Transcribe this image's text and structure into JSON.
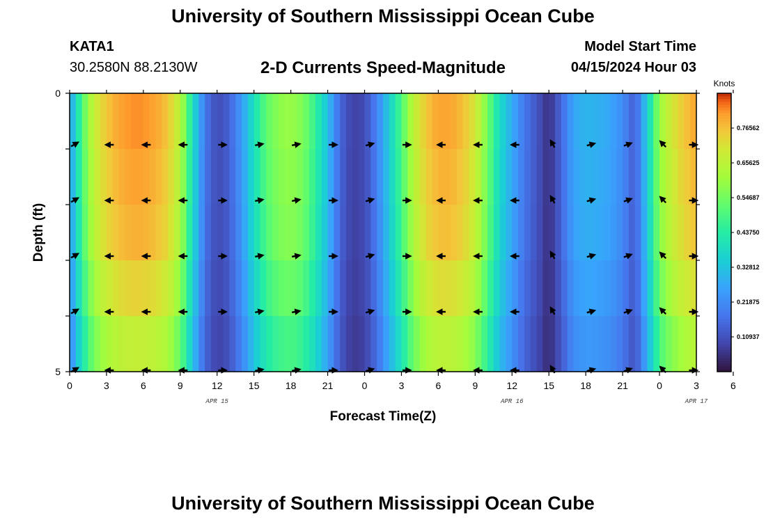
{
  "header": {
    "title": "University of Southern Mississippi Ocean Cube",
    "station_id": "KATA1",
    "coordinates": "30.2580N  88.2130W",
    "subtitle": "2-D Currents Speed-Magnitude",
    "model_start_label": "Model Start Time",
    "model_start_value": "04/15/2024 Hour 03"
  },
  "footer": {
    "title": "University of Southern Mississippi Ocean Cube"
  },
  "chart_data": {
    "type": "heatmap",
    "title": "2-D Currents Speed-Magnitude",
    "xlabel": "Forecast Time(Z)",
    "ylabel": "Depth (ft)",
    "xlim": [
      0,
      51
    ],
    "ylim": [
      0,
      5
    ],
    "y_tick_labels": [
      "0",
      "",
      "",
      "",
      "",
      "5"
    ],
    "x_tick_labels": [
      "0",
      "3",
      "6",
      "9",
      "12",
      "15",
      "18",
      "21",
      "0",
      "3",
      "6",
      "9",
      "12",
      "15",
      "18",
      "21",
      "0",
      "3",
      "6"
    ],
    "date_labels": [
      {
        "text": "APR 15",
        "hour": 12
      },
      {
        "text": "APR 16",
        "hour": 36
      },
      {
        "text": "APR 17",
        "hour": 51
      }
    ],
    "colorbar": {
      "unit": "Knots",
      "min": 0.0,
      "max": 0.875,
      "tick_values": [
        0.10937,
        0.21875,
        0.32812,
        0.4375,
        0.54687,
        0.65625,
        0.76562
      ],
      "tick_labels": [
        "0.10937",
        "0.21875",
        "0.32812",
        "0.43750",
        "0.54687",
        "0.65625",
        "0.76562"
      ]
    },
    "depth_levels": [
      0.5,
      1.5,
      2.5,
      3.5,
      4.5
    ],
    "speed_profile": {
      "hours": [
        0,
        1,
        2,
        3,
        4,
        5,
        6,
        7,
        8,
        9,
        10,
        11,
        12,
        13,
        14,
        15,
        16,
        17,
        18,
        19,
        20,
        21,
        22,
        23,
        24,
        25,
        26,
        27,
        28,
        29,
        30,
        31,
        32,
        33,
        34,
        35,
        36,
        37,
        38,
        39,
        40,
        41,
        42,
        43,
        44,
        45,
        46,
        47,
        48,
        49,
        50,
        51
      ],
      "speed": [
        0.25,
        0.5,
        0.68,
        0.76,
        0.8,
        0.82,
        0.82,
        0.8,
        0.76,
        0.65,
        0.4,
        0.18,
        0.1,
        0.14,
        0.25,
        0.4,
        0.52,
        0.58,
        0.6,
        0.56,
        0.46,
        0.32,
        0.15,
        0.08,
        0.1,
        0.2,
        0.35,
        0.5,
        0.66,
        0.76,
        0.8,
        0.8,
        0.77,
        0.7,
        0.55,
        0.38,
        0.28,
        0.18,
        0.12,
        0.05,
        0.15,
        0.27,
        0.3,
        0.29,
        0.27,
        0.22,
        0.13,
        0.35,
        0.6,
        0.7,
        0.76,
        0.8
      ]
    },
    "depth_factors": [
      1.0,
      0.98,
      0.96,
      0.9,
      0.82
    ],
    "arrows": {
      "hours": [
        0,
        3,
        6,
        9,
        12,
        15,
        18,
        21,
        24,
        27,
        30,
        33,
        36,
        39,
        42,
        45,
        48,
        51
      ],
      "depths": [
        1.0,
        2.0,
        3.0,
        4.0,
        5.0
      ],
      "angles_deg": [
        30,
        180,
        180,
        180,
        0,
        10,
        10,
        0,
        15,
        0,
        180,
        180,
        180,
        120,
        15,
        20,
        135,
        0
      ]
    }
  }
}
